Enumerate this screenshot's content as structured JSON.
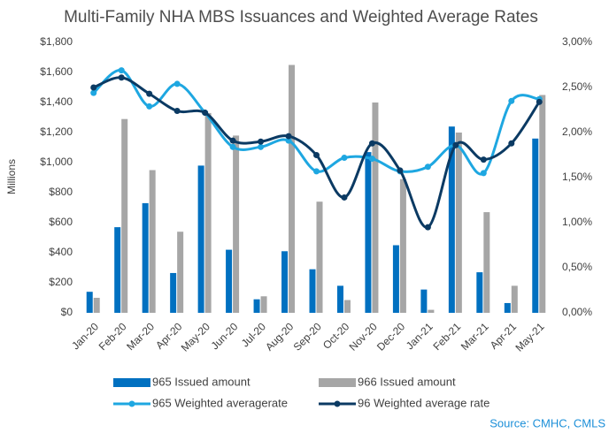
{
  "chart_data": {
    "type": "bar_line",
    "title": "Multi-Family NHA MBS Issuances and Weighted Average Rates",
    "y_label": "Millions",
    "source": "Source: CMHC, CMLS",
    "categories": [
      "Jan-20",
      "Feb-20",
      "Mar-20",
      "Apr-20",
      "May-20",
      "Jun-20",
      "Jul-20",
      "Aug-20",
      "Sep-20",
      "Oct-20",
      "Nov-20",
      "Dec-20",
      "Jan-21",
      "Feb-21",
      "Mar-21",
      "Apr-21",
      "May-21"
    ],
    "series": [
      {
        "name": "965 Issued amount",
        "type": "bar",
        "color": "#0070c0",
        "values": [
          140,
          570,
          730,
          265,
          980,
          420,
          90,
          410,
          290,
          180,
          1070,
          450,
          155,
          1240,
          270,
          65,
          1160
        ]
      },
      {
        "name": "966 Issued amount",
        "type": "bar",
        "color": "#a6a6a6",
        "values": [
          100,
          1290,
          950,
          540,
          1330,
          1180,
          110,
          1650,
          740,
          85,
          1400,
          890,
          20,
          1200,
          670,
          180,
          1450
        ]
      },
      {
        "name": "965 Weighted averagerate",
        "type": "line",
        "axis": "y2",
        "color": "#1ea7e1",
        "values": [
          2.44,
          2.69,
          2.29,
          2.54,
          2.22,
          1.84,
          1.84,
          1.91,
          1.57,
          1.72,
          1.71,
          1.57,
          1.62,
          1.86,
          1.55,
          2.35,
          2.37
        ]
      },
      {
        "name": "96 Weighted average rate",
        "type": "line",
        "axis": "y2",
        "color": "#0b3a63",
        "values": [
          2.5,
          2.61,
          2.43,
          2.24,
          2.22,
          1.91,
          1.9,
          1.96,
          1.75,
          1.28,
          1.88,
          1.58,
          0.95,
          1.86,
          1.7,
          1.88,
          2.34
        ]
      }
    ],
    "ylim": [
      0,
      1800
    ],
    "yticks": [
      {
        "value": 0,
        "label": "$0"
      },
      {
        "value": 200,
        "label": "$200"
      },
      {
        "value": 400,
        "label": "$400"
      },
      {
        "value": 600,
        "label": "$600"
      },
      {
        "value": 800,
        "label": "$800"
      },
      {
        "value": 1000,
        "label": "$1,000"
      },
      {
        "value": 1200,
        "label": "$1,200"
      },
      {
        "value": 1400,
        "label": "$1,400"
      },
      {
        "value": 1600,
        "label": "$1,600"
      },
      {
        "value": 1800,
        "label": "$1,800"
      }
    ],
    "y2lim": [
      0,
      3
    ],
    "y2ticks": [
      {
        "value": 0,
        "label": "0,00%"
      },
      {
        "value": 0.5,
        "label": "0,50%"
      },
      {
        "value": 1,
        "label": "1,00%"
      },
      {
        "value": 1.5,
        "label": "1,50%"
      },
      {
        "value": 2,
        "label": "2,00%"
      },
      {
        "value": 2.5,
        "label": "2,50%"
      },
      {
        "value": 3,
        "label": "3,00%"
      }
    ],
    "grid": false
  }
}
